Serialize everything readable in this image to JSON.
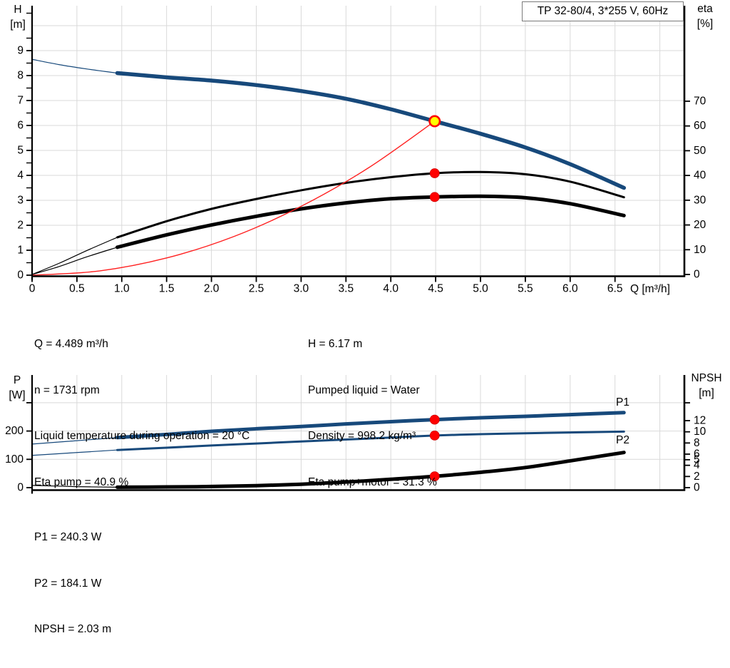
{
  "title_box": "TP 32-80/4, 3*255 V, 60Hz",
  "labels": {
    "h": [
      "H",
      "[m]"
    ],
    "eta": [
      "eta",
      "[%]"
    ],
    "p": [
      "P",
      "[W]"
    ],
    "npsh": [
      "NPSH",
      "[m]"
    ],
    "q": "Q [m³/h]"
  },
  "texts": {
    "top_left": [
      "Q = 4.489 m³/h",
      "n = 1731 rpm",
      "Liquid temperature during operation = 20 °C",
      "Eta pump = 40.9 %"
    ],
    "top_right": [
      "H = 6.17 m",
      "Pumped liquid = Water",
      "Density = 998.2 kg/m³",
      "Eta pump+motor = 31.3 %"
    ],
    "bottom": [
      "P1 = 240.3 W",
      "P2 = 184.1 W",
      "NPSH = 2.03 m"
    ]
  },
  "colors": {
    "curve_blue": "#17497B",
    "curve_black": "#000000",
    "curve_red": "#FF2020",
    "dot_red": "#FF0000",
    "duty_yellow": "#FFFF00",
    "grid": "#D9D9D9",
    "axis": "#000000",
    "label_blue": "#17497B"
  },
  "chart_data": [
    {
      "type": "line",
      "title": "TP 32-80/4, 3*255 V, 60Hz",
      "x_label": "Q [m³/h]",
      "x_range": [
        0,
        7.27
      ],
      "x_ticks": [
        "0",
        "0.5",
        "1.0",
        "1.5",
        "2.0",
        "2.5",
        "3.0",
        "3.5",
        "4.0",
        "4.5",
        "5.0",
        "5.5",
        "6.0",
        "6.5"
      ],
      "axes": {
        "left": {
          "label": "H [m]",
          "range": [
            0,
            10.8
          ],
          "ticks": [
            0,
            1,
            2,
            3,
            4,
            5,
            6,
            7,
            8,
            9
          ]
        },
        "right": {
          "label": "eta [%]",
          "range": [
            0,
            109
          ],
          "ticks": [
            0,
            10,
            20,
            30,
            40,
            50,
            60,
            70
          ]
        }
      },
      "series": [
        {
          "name": "H",
          "axis": "left",
          "color_key": "curve_blue",
          "thin": [
            [
              0,
              8.65
            ],
            [
              0.3,
              8.44
            ],
            [
              0.6,
              8.27
            ],
            [
              0.95,
              8.1
            ]
          ],
          "thick": [
            [
              0.95,
              8.1
            ],
            [
              1.5,
              7.93
            ],
            [
              2,
              7.8
            ],
            [
              2.5,
              7.62
            ],
            [
              3,
              7.38
            ],
            [
              3.5,
              7.07
            ],
            [
              4,
              6.65
            ],
            [
              4.489,
              6.17
            ],
            [
              5,
              5.67
            ],
            [
              5.5,
              5.12
            ],
            [
              6,
              4.45
            ],
            [
              6.6,
              3.5
            ]
          ]
        },
        {
          "name": "Eta pump",
          "axis": "right",
          "color_key": "curve_black",
          "thin": [
            [
              0,
              0
            ],
            [
              0.3,
              4.5
            ],
            [
              0.6,
              9.5
            ],
            [
              0.95,
              15
            ]
          ],
          "thick": [
            [
              0.95,
              15
            ],
            [
              1.5,
              21.5
            ],
            [
              2,
              26.5
            ],
            [
              2.5,
              30.5
            ],
            [
              3,
              34
            ],
            [
              3.5,
              37
            ],
            [
              4,
              39.3
            ],
            [
              4.489,
              40.9
            ],
            [
              5,
              41.4
            ],
            [
              5.5,
              40.5
            ],
            [
              6,
              37.5
            ],
            [
              6.6,
              31.2
            ]
          ]
        },
        {
          "name": "Eta pump+motor",
          "axis": "right",
          "color_key": "curve_black",
          "thin": [
            [
              0,
              0
            ],
            [
              0.3,
              3.2
            ],
            [
              0.6,
              7
            ],
            [
              0.95,
              11
            ]
          ],
          "thick": [
            [
              0.95,
              11
            ],
            [
              1.5,
              16
            ],
            [
              2,
              20
            ],
            [
              2.5,
              23.5
            ],
            [
              3,
              26.5
            ],
            [
              3.5,
              28.9
            ],
            [
              4,
              30.6
            ],
            [
              4.489,
              31.3
            ],
            [
              5,
              31.6
            ],
            [
              5.5,
              31
            ],
            [
              6,
              28.6
            ],
            [
              6.6,
              23.8
            ]
          ]
        },
        {
          "name": "System",
          "axis": "left",
          "color_key": "curve_red",
          "thin": [
            [
              0,
              0
            ],
            [
              0.75,
              0.17
            ],
            [
              1.5,
              0.69
            ],
            [
              2.25,
              1.55
            ],
            [
              3,
              2.76
            ],
            [
              3.75,
              4.3
            ],
            [
              4.489,
              6.17
            ]
          ],
          "thick": []
        }
      ],
      "markers": [
        {
          "x": 4.489,
          "y": 6.17,
          "axis": "left",
          "style": "duty"
        },
        {
          "x": 4.489,
          "y": 40.9,
          "axis": "right",
          "style": "dot"
        },
        {
          "x": 4.489,
          "y": 31.3,
          "axis": "right",
          "style": "dot"
        }
      ],
      "duty_point": {
        "Q": 4.489,
        "H": 6.17,
        "eta_pump": 40.9,
        "eta_pump_motor": 31.3
      }
    },
    {
      "type": "line",
      "title": "",
      "x_label": "",
      "x_range": [
        0,
        7.27
      ],
      "x_ticks": [],
      "axes": {
        "left": {
          "label": "P [W]",
          "range": [
            0,
            400
          ],
          "ticks": [
            0,
            100,
            200
          ]
        },
        "right": {
          "label": "NPSH [m]",
          "range": [
            0,
            15
          ],
          "ticks": [
            0,
            2,
            4,
            5,
            6,
            8,
            10,
            12
          ]
        }
      },
      "series": [
        {
          "name": "P1",
          "axis": "left",
          "color_key": "curve_blue",
          "thin": [
            [
              0,
              154
            ],
            [
              0.5,
              166
            ],
            [
              0.95,
              177
            ]
          ],
          "thick": [
            [
              0.95,
              177
            ],
            [
              1.5,
              188
            ],
            [
              2,
              199
            ],
            [
              2.5,
              208
            ],
            [
              3,
              216
            ],
            [
              3.5,
              225
            ],
            [
              4,
              233
            ],
            [
              4.489,
              240.3
            ],
            [
              5,
              247
            ],
            [
              5.5,
              252
            ],
            [
              6,
              258
            ],
            [
              6.6,
              265
            ]
          ]
        },
        {
          "name": "P2",
          "axis": "left",
          "color_key": "curve_blue",
          "thin": [
            [
              0,
              114
            ],
            [
              0.5,
              124
            ],
            [
              0.95,
              133
            ]
          ],
          "thick": [
            [
              0.95,
              133
            ],
            [
              1.5,
              141
            ],
            [
              2,
              149
            ],
            [
              2.5,
              156
            ],
            [
              3,
              163
            ],
            [
              3.5,
              170
            ],
            [
              4,
              177
            ],
            [
              4.489,
              184.1
            ],
            [
              5,
              189
            ],
            [
              5.5,
              192
            ],
            [
              6,
              195
            ],
            [
              6.6,
              198
            ]
          ]
        },
        {
          "name": "NPSH",
          "axis": "right",
          "color_key": "curve_black",
          "thin": [
            [
              0,
              0.4
            ],
            [
              0.5,
              0.18
            ],
            [
              0.95,
              0.08
            ]
          ],
          "thick": [
            [
              0.95,
              0.08
            ],
            [
              1.5,
              0.12
            ],
            [
              2,
              0.2
            ],
            [
              2.5,
              0.35
            ],
            [
              3,
              0.6
            ],
            [
              3.5,
              1.0
            ],
            [
              4,
              1.5
            ],
            [
              4.489,
              2.03
            ],
            [
              5,
              2.75
            ],
            [
              5.5,
              3.6
            ],
            [
              6,
              4.8
            ],
            [
              6.6,
              6.3
            ]
          ]
        }
      ],
      "markers": [
        {
          "x": 4.489,
          "y": 240.3,
          "axis": "left",
          "style": "dot"
        },
        {
          "x": 4.489,
          "y": 184.1,
          "axis": "left",
          "style": "dot"
        },
        {
          "x": 4.489,
          "y": 2.03,
          "axis": "right",
          "style": "dot"
        }
      ],
      "duty_point": {
        "Q": 4.489,
        "P1": 240.3,
        "P2": 184.1,
        "NPSH": 2.03
      }
    }
  ]
}
